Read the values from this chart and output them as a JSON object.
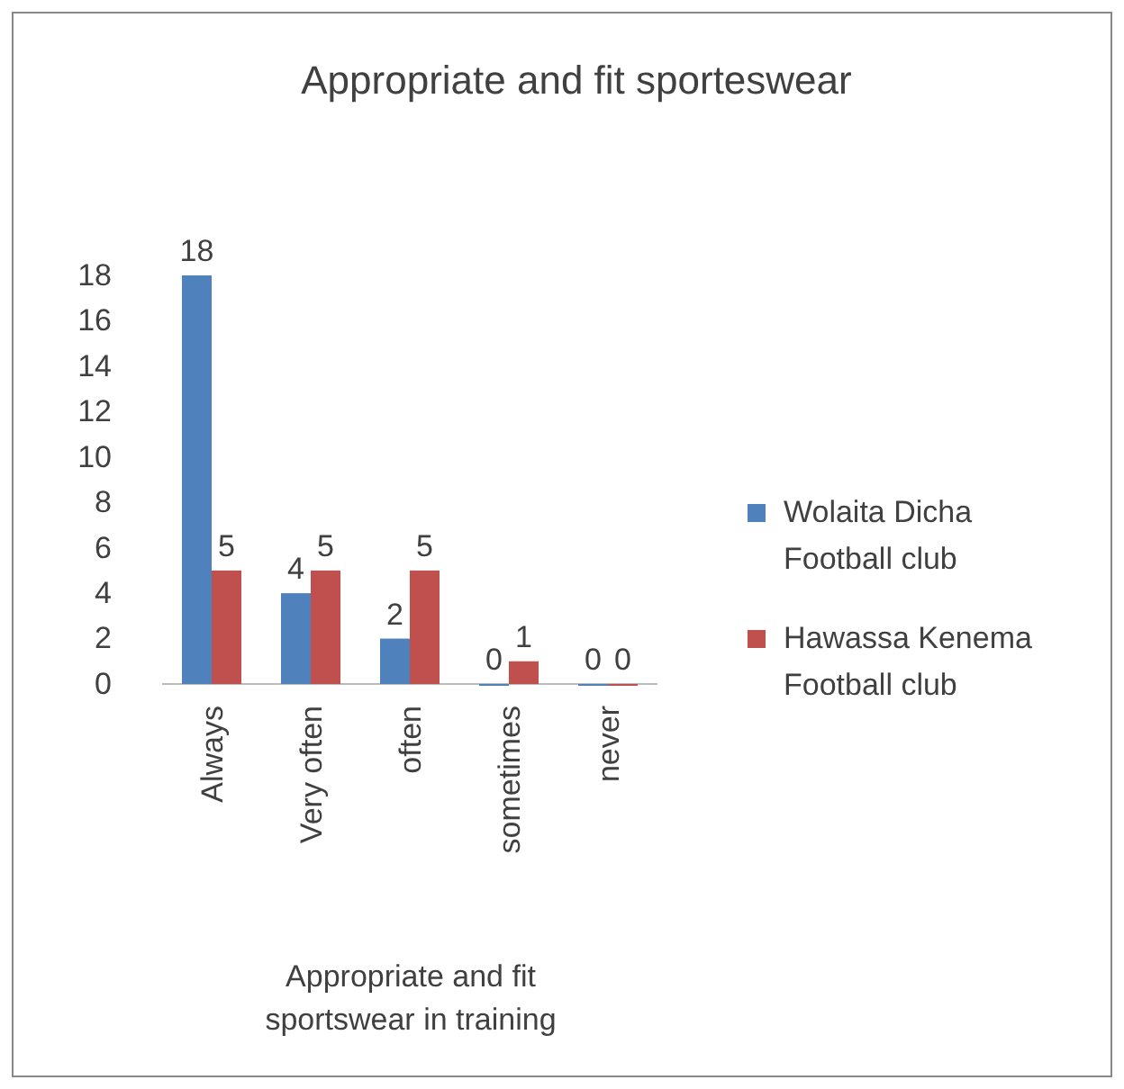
{
  "chart_data": {
    "type": "bar",
    "title": "Appropriate and fit sporteswear",
    "xlabel": "Appropriate and fit sportswear in training",
    "categories": [
      "Always",
      "Very often",
      "often",
      "sometimes",
      "never"
    ],
    "series": [
      {
        "name": "Wolaita Dicha Football club",
        "color": "#4f81bd",
        "values": [
          18,
          4,
          2,
          0,
          0
        ]
      },
      {
        "name": "Hawassa Kenema Football club",
        "color": "#c0504d",
        "values": [
          5,
          5,
          5,
          1,
          0
        ]
      }
    ],
    "ylim": [
      0,
      18
    ],
    "yticks": [
      0,
      2,
      4,
      6,
      8,
      10,
      12,
      14,
      16,
      18
    ],
    "grid": false,
    "legend": "right",
    "data_labels": true
  }
}
